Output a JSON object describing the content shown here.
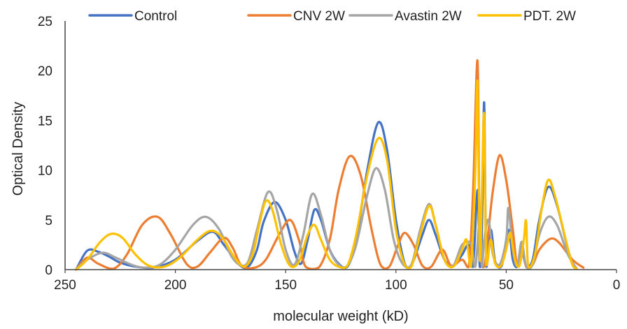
{
  "chart_data": {
    "type": "line",
    "xlabel": "molecular weight (kD)",
    "ylabel": "Optical Density",
    "xlim": [
      250,
      0
    ],
    "x_reversed": true,
    "ylim": [
      0,
      25
    ],
    "xticks": [
      250,
      200,
      150,
      100,
      50,
      0
    ],
    "yticks": [
      0,
      5,
      10,
      15,
      20,
      25
    ],
    "grid": false,
    "legend_position": "top",
    "series": [
      {
        "name": "Control",
        "color": "#4472C4",
        "points": [
          [
            245,
            0
          ],
          [
            240,
            1.9
          ],
          [
            235,
            1.8
          ],
          [
            230,
            1.3
          ],
          [
            225,
            0.7
          ],
          [
            218,
            0.3
          ],
          [
            210,
            0.2
          ],
          [
            200,
            1.0
          ],
          [
            190,
            2.9
          ],
          [
            183,
            3.8
          ],
          [
            178,
            2.5
          ],
          [
            171,
            0.5
          ],
          [
            167,
            0.3
          ],
          [
            163,
            2.0
          ],
          [
            160,
            4.8
          ],
          [
            155,
            6.8
          ],
          [
            150,
            5.0
          ],
          [
            146,
            1.8
          ],
          [
            143,
            0.6
          ],
          [
            140,
            3.0
          ],
          [
            137,
            6.0
          ],
          [
            134,
            5.0
          ],
          [
            130,
            2.0
          ],
          [
            126,
            0.6
          ],
          [
            122,
            0.3
          ],
          [
            118,
            3.0
          ],
          [
            113,
            10.0
          ],
          [
            108,
            14.8
          ],
          [
            104,
            12.0
          ],
          [
            100,
            5.0
          ],
          [
            96,
            0.6
          ],
          [
            93,
            0.4
          ],
          [
            88,
            3.5
          ],
          [
            85,
            5.0
          ],
          [
            82,
            3.5
          ],
          [
            78,
            1.0
          ],
          [
            74,
            0.4
          ],
          [
            70,
            1.5
          ],
          [
            67,
            2.5
          ],
          [
            65,
            0.3
          ],
          [
            63,
            8.0
          ],
          [
            62,
            0.3
          ],
          [
            61,
            4.0
          ],
          [
            60,
            16.8
          ],
          [
            59,
            0.3
          ],
          [
            57,
            4.0
          ],
          [
            55,
            0.8
          ],
          [
            52,
            0.4
          ],
          [
            49,
            4.0
          ],
          [
            47,
            1.0
          ],
          [
            45,
            0.3
          ],
          [
            43,
            2.0
          ],
          [
            41,
            0.4
          ],
          [
            38,
            1.0
          ],
          [
            35,
            5.0
          ],
          [
            31,
            8.3
          ],
          [
            27,
            6.5
          ],
          [
            22,
            2.0
          ],
          [
            19,
            0.2
          ]
        ]
      },
      {
        "name": "CNV 2W",
        "color": "#ED7D31",
        "points": [
          [
            245,
            0
          ],
          [
            240,
            1.2
          ],
          [
            235,
            0.6
          ],
          [
            228,
            0.1
          ],
          [
            222,
            1.5
          ],
          [
            215,
            4.5
          ],
          [
            208,
            5.3
          ],
          [
            202,
            3.5
          ],
          [
            195,
            0.6
          ],
          [
            190,
            0.3
          ],
          [
            184,
            1.8
          ],
          [
            178,
            3.2
          ],
          [
            174,
            2.2
          ],
          [
            170,
            0.4
          ],
          [
            164,
            0.2
          ],
          [
            159,
            1.0
          ],
          [
            153,
            3.5
          ],
          [
            148,
            5.0
          ],
          [
            144,
            3.0
          ],
          [
            141,
            0.3
          ],
          [
            135,
            0.2
          ],
          [
            130,
            3.0
          ],
          [
            126,
            8.0
          ],
          [
            121,
            11.4
          ],
          [
            116,
            9.5
          ],
          [
            111,
            4.0
          ],
          [
            107,
            0.5
          ],
          [
            103,
            0.3
          ],
          [
            99,
            2.5
          ],
          [
            96,
            3.7
          ],
          [
            92,
            2.5
          ],
          [
            88,
            0.4
          ],
          [
            84,
            0.3
          ],
          [
            79,
            2.0
          ],
          [
            75,
            0.4
          ],
          [
            70,
            1.0
          ],
          [
            67,
            0.3
          ],
          [
            65,
            8.0
          ],
          [
            63,
            21.0
          ],
          [
            62,
            3.0
          ],
          [
            60,
            0.3
          ],
          [
            58,
            4.0
          ],
          [
            56,
            8.0
          ],
          [
            53,
            11.5
          ],
          [
            50,
            9.0
          ],
          [
            47,
            4.0
          ],
          [
            45,
            0.4
          ],
          [
            43,
            2.5
          ],
          [
            41,
            0.3
          ],
          [
            38,
            0.5
          ],
          [
            35,
            2.0
          ],
          [
            30,
            3.1
          ],
          [
            26,
            2.7
          ],
          [
            20,
            1.0
          ],
          [
            15,
            0.2
          ]
        ]
      },
      {
        "name": "Avastin 2W",
        "color": "#A5A5A5",
        "points": [
          [
            245,
            0
          ],
          [
            240,
            1.0
          ],
          [
            233,
            1.7
          ],
          [
            227,
            1.2
          ],
          [
            220,
            0.5
          ],
          [
            214,
            0.2
          ],
          [
            207,
            0.5
          ],
          [
            200,
            2.0
          ],
          [
            192,
            4.5
          ],
          [
            186,
            5.3
          ],
          [
            180,
            4.0
          ],
          [
            175,
            1.5
          ],
          [
            171,
            0.5
          ],
          [
            167,
            0.8
          ],
          [
            163,
            4.0
          ],
          [
            158,
            7.8
          ],
          [
            154,
            6.0
          ],
          [
            150,
            2.0
          ],
          [
            146,
            0.5
          ],
          [
            142,
            3.5
          ],
          [
            138,
            7.6
          ],
          [
            134,
            5.5
          ],
          [
            130,
            2.0
          ],
          [
            126,
            0.5
          ],
          [
            122,
            0.4
          ],
          [
            118,
            2.5
          ],
          [
            113,
            7.5
          ],
          [
            109,
            10.2
          ],
          [
            105,
            8.0
          ],
          [
            101,
            3.0
          ],
          [
            97,
            0.6
          ],
          [
            93,
            0.5
          ],
          [
            89,
            4.0
          ],
          [
            85,
            6.6
          ],
          [
            82,
            4.5
          ],
          [
            78,
            1.0
          ],
          [
            74,
            0.4
          ],
          [
            70,
            2.5
          ],
          [
            66,
            2.6
          ],
          [
            64,
            0.3
          ],
          [
            62,
            5.0
          ],
          [
            61,
            0.3
          ],
          [
            60,
            3.0
          ],
          [
            58,
            5.0
          ],
          [
            56,
            1.5
          ],
          [
            53,
            0.5
          ],
          [
            50,
            3.0
          ],
          [
            49,
            6.2
          ],
          [
            47,
            2.0
          ],
          [
            45,
            0.4
          ],
          [
            43,
            2.8
          ],
          [
            41,
            0.4
          ],
          [
            38,
            0.5
          ],
          [
            35,
            3.5
          ],
          [
            31,
            5.3
          ],
          [
            27,
            4.5
          ],
          [
            22,
            1.5
          ],
          [
            18,
            0.1
          ]
        ]
      },
      {
        "name": "PDT. 2W",
        "color": "#FFC000",
        "points": [
          [
            245,
            0
          ],
          [
            240,
            1.0
          ],
          [
            234,
            2.8
          ],
          [
            229,
            3.6
          ],
          [
            224,
            3.2
          ],
          [
            218,
            1.5
          ],
          [
            212,
            0.4
          ],
          [
            205,
            0.3
          ],
          [
            198,
            1.2
          ],
          [
            190,
            3.0
          ],
          [
            184,
            3.9
          ],
          [
            179,
            3.3
          ],
          [
            174,
            1.5
          ],
          [
            169,
            0.3
          ],
          [
            165,
            1.5
          ],
          [
            162,
            4.5
          ],
          [
            159,
            6.9
          ],
          [
            156,
            6.0
          ],
          [
            152,
            2.5
          ],
          [
            148,
            0.4
          ],
          [
            144,
            0.8
          ],
          [
            140,
            3.5
          ],
          [
            137,
            4.5
          ],
          [
            134,
            3.0
          ],
          [
            130,
            1.0
          ],
          [
            126,
            0.3
          ],
          [
            122,
            0.4
          ],
          [
            118,
            3.5
          ],
          [
            113,
            9.5
          ],
          [
            108,
            13.2
          ],
          [
            104,
            11.0
          ],
          [
            100,
            4.0
          ],
          [
            96,
            0.5
          ],
          [
            93,
            0.3
          ],
          [
            89,
            3.5
          ],
          [
            85,
            6.4
          ],
          [
            82,
            4.5
          ],
          [
            78,
            1.0
          ],
          [
            74,
            0.3
          ],
          [
            70,
            2.0
          ],
          [
            68,
            3.0
          ],
          [
            66,
            0.3
          ],
          [
            64,
            10.0
          ],
          [
            63,
            18.8
          ],
          [
            62,
            1.0
          ],
          [
            61,
            8.0
          ],
          [
            60,
            15.6
          ],
          [
            59,
            0.5
          ],
          [
            57,
            3.0
          ],
          [
            55,
            0.6
          ],
          [
            52,
            0.5
          ],
          [
            49,
            3.0
          ],
          [
            48,
            3.6
          ],
          [
            46,
            1.0
          ],
          [
            44,
            0.4
          ],
          [
            42,
            3.0
          ],
          [
            41,
            4.9
          ],
          [
            40,
            0.3
          ],
          [
            37,
            1.5
          ],
          [
            34,
            6.0
          ],
          [
            31,
            9.0
          ],
          [
            28,
            7.5
          ],
          [
            23,
            3.0
          ],
          [
            20,
            0.5
          ],
          [
            18,
            0.1
          ]
        ]
      }
    ]
  }
}
